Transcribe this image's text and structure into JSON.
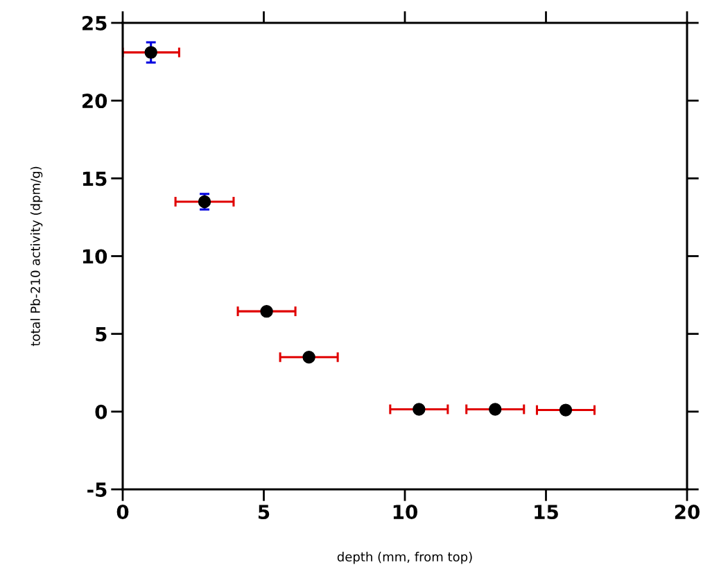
{
  "chart_data": {
    "type": "scatter",
    "xlabel": "depth (mm, from top)",
    "ylabel": "total Pb-210 activity (dpm/g)",
    "x": [
      1.0,
      2.9,
      5.1,
      6.6,
      10.5,
      13.2,
      15.7
    ],
    "values": [
      23.1,
      13.5,
      6.45,
      3.5,
      0.15,
      0.15,
      0.1
    ],
    "errors": [
      0.65,
      0.5,
      null,
      null,
      null,
      null,
      null
    ],
    "xerrors": [
      1.0,
      1.03,
      1.02,
      1.02,
      1.02,
      1.02,
      1.02
    ],
    "color": "#000000",
    "marker": "circle",
    "xlim": [
      0,
      20
    ],
    "ylim": [
      -5,
      25
    ],
    "xticks": [
      0,
      5,
      10,
      15,
      20
    ],
    "yticks": [
      -5,
      0,
      5,
      10,
      15,
      20,
      25
    ],
    "grid": false,
    "legend": false
  }
}
